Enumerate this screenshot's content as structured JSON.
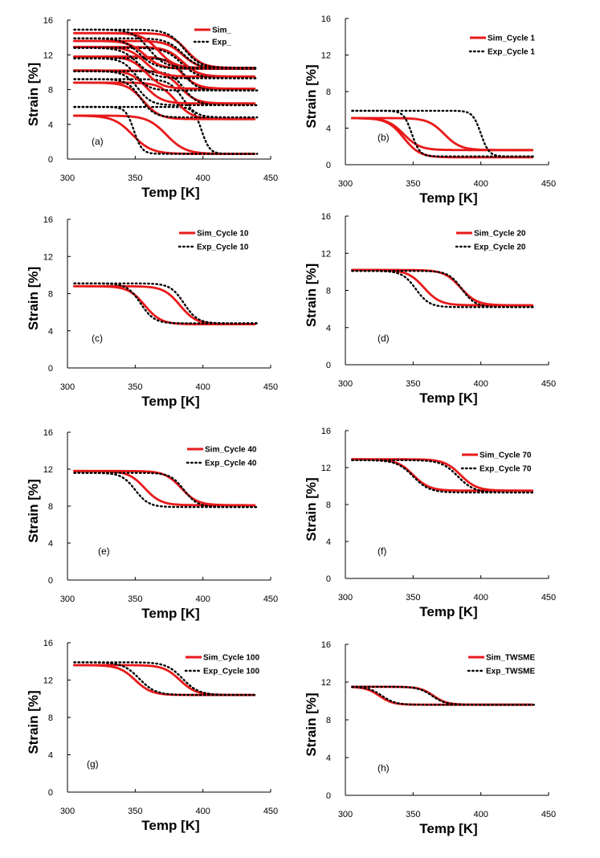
{
  "colors": {
    "sim": "#e8191a",
    "exp": "#000000",
    "axis": "#000000"
  },
  "chart_data": [
    {
      "type": "line",
      "panel_label": "(a)",
      "xlabel": "Temp [K]",
      "ylabel": "Strain [%]",
      "xlim": [
        300,
        450
      ],
      "ylim": [
        0,
        16
      ],
      "xticks": [
        "300",
        "350",
        "400",
        "450"
      ],
      "yticks": [
        "0",
        "4",
        "8",
        "12",
        "16"
      ],
      "legend": [
        "Sim_",
        "Exp_"
      ],
      "series": [
        {
          "name": "Sim",
          "kind": "sim",
          "x0": 305,
          "x1": 438,
          "lo": 0.6,
          "hi": 5.0,
          "heat": 373,
          "cool": 348,
          "w": 7
        },
        {
          "name": "Exp",
          "kind": "exp",
          "x0": 305,
          "x1": 440,
          "lo": 0.6,
          "hi": 6.0,
          "heat": 399,
          "cool": 349,
          "w": 3
        },
        {
          "name": "Sim",
          "kind": "sim",
          "x0": 305,
          "x1": 438,
          "lo": 4.6,
          "hi": 8.8,
          "heat": 380,
          "cool": 356,
          "w": 6
        },
        {
          "name": "Exp",
          "kind": "exp",
          "x0": 305,
          "x1": 440,
          "lo": 4.8,
          "hi": 9.2,
          "heat": 385,
          "cool": 354,
          "w": 5
        },
        {
          "name": "Sim",
          "kind": "sim",
          "x0": 305,
          "x1": 438,
          "lo": 6.4,
          "hi": 10.2,
          "heat": 383,
          "cool": 358,
          "w": 6
        },
        {
          "name": "Exp",
          "kind": "exp",
          "x0": 305,
          "x1": 440,
          "lo": 6.2,
          "hi": 10.1,
          "heat": 386,
          "cool": 352,
          "w": 5
        },
        {
          "name": "Sim",
          "kind": "sim",
          "x0": 305,
          "x1": 438,
          "lo": 8.1,
          "hi": 11.8,
          "heat": 384,
          "cool": 358,
          "w": 6
        },
        {
          "name": "Exp",
          "kind": "exp",
          "x0": 305,
          "x1": 440,
          "lo": 7.9,
          "hi": 11.6,
          "heat": 386,
          "cool": 350,
          "w": 5
        },
        {
          "name": "Sim",
          "kind": "sim",
          "x0": 305,
          "x1": 438,
          "lo": 9.5,
          "hi": 12.9,
          "heat": 385,
          "cool": 357,
          "w": 6
        },
        {
          "name": "Exp",
          "kind": "exp",
          "x0": 305,
          "x1": 440,
          "lo": 9.3,
          "hi": 12.8,
          "heat": 384,
          "cool": 352,
          "w": 6
        },
        {
          "name": "Sim",
          "kind": "sim",
          "x0": 305,
          "x1": 438,
          "lo": 10.4,
          "hi": 13.6,
          "heat": 385,
          "cool": 357,
          "w": 6
        },
        {
          "name": "Exp",
          "kind": "exp",
          "x0": 305,
          "x1": 440,
          "lo": 10.4,
          "hi": 13.9,
          "heat": 385,
          "cool": 353,
          "w": 6
        },
        {
          "name": "Sim",
          "kind": "sim",
          "x0": 305,
          "x1": 438,
          "lo": 10.5,
          "hi": 14.5,
          "heat": 388,
          "cool": 367,
          "w": 6
        },
        {
          "name": "Exp",
          "kind": "exp",
          "x0": 305,
          "x1": 440,
          "lo": 10.5,
          "hi": 14.9,
          "heat": 386,
          "cool": 360,
          "w": 6
        }
      ]
    },
    {
      "type": "line",
      "panel_label": "(b)",
      "xlabel": "Temp [K]",
      "ylabel": "Strain [%]",
      "xlim": [
        300,
        450
      ],
      "ylim": [
        0,
        16
      ],
      "xticks": [
        "300",
        "350",
        "400",
        "450"
      ],
      "yticks": [
        "0",
        "4",
        "8",
        "12",
        "16"
      ],
      "legend": [
        "Sim_Cycle 1",
        "Exp_Cycle 1"
      ],
      "series": [
        {
          "name": "Sim_Cycle 1",
          "kind": "sim",
          "x0": 305,
          "x1": 438,
          "lo": 1.6,
          "hi": 5.1,
          "heat": 373,
          "cool": 343,
          "w": 6
        },
        {
          "name": "Sim_Cycle 1",
          "kind": "sim",
          "x0": 305,
          "x1": 438,
          "lo": 0.8,
          "hi": 5.1,
          "heat": 370,
          "cool": 343,
          "w": 6,
          "only": "cool"
        },
        {
          "name": "Exp_Cycle 1",
          "kind": "exp",
          "x0": 305,
          "x1": 440,
          "lo": 0.9,
          "hi": 5.9,
          "heat": 400,
          "cool": 349,
          "w": 3
        }
      ]
    },
    {
      "type": "line",
      "panel_label": "(c)",
      "xlabel": "Temp [K]",
      "ylabel": "Strain [%]",
      "xlim": [
        300,
        450
      ],
      "ylim": [
        0,
        16
      ],
      "xticks": [
        "300",
        "350",
        "400",
        "450"
      ],
      "yticks": [
        "0",
        "4",
        "8",
        "12",
        "16"
      ],
      "legend": [
        "Sim_Cycle 10",
        "Exp_Cycle 10"
      ],
      "series": [
        {
          "name": "Sim_Cycle 10",
          "kind": "sim",
          "x0": 305,
          "x1": 438,
          "lo": 4.7,
          "hi": 8.8,
          "heat": 383,
          "cool": 357,
          "w": 6
        },
        {
          "name": "Exp_Cycle 10",
          "kind": "exp",
          "x0": 305,
          "x1": 440,
          "lo": 4.8,
          "hi": 9.1,
          "heat": 386,
          "cool": 354,
          "w": 5
        }
      ]
    },
    {
      "type": "line",
      "panel_label": "(d)",
      "xlabel": "Temp [K]",
      "ylabel": "Strain [%]",
      "xlim": [
        300,
        450
      ],
      "ylim": [
        0,
        16
      ],
      "xticks": [
        "300",
        "350",
        "400",
        "450"
      ],
      "yticks": [
        "0",
        "4",
        "8",
        "12",
        "16"
      ],
      "legend": [
        "Sim_Cycle 20",
        "Exp_Cycle 20"
      ],
      "series": [
        {
          "name": "Sim_Cycle 20",
          "kind": "sim",
          "x0": 305,
          "x1": 438,
          "lo": 6.4,
          "hi": 10.2,
          "heat": 385,
          "cool": 358,
          "w": 6
        },
        {
          "name": "Exp_Cycle 20",
          "kind": "exp",
          "x0": 305,
          "x1": 440,
          "lo": 6.2,
          "hi": 10.1,
          "heat": 386,
          "cool": 352,
          "w": 5
        }
      ]
    },
    {
      "type": "line",
      "panel_label": "(e)",
      "xlabel": "Temp [K]",
      "ylabel": "Strain [%]",
      "xlim": [
        300,
        450
      ],
      "ylim": [
        0,
        16
      ],
      "xticks": [
        "300",
        "350",
        "400",
        "450"
      ],
      "yticks": [
        "0",
        "4",
        "8",
        "12",
        "16"
      ],
      "legend": [
        "Sim_Cycle 40",
        "Exp_Cycle 40"
      ],
      "series": [
        {
          "name": "Sim_Cycle 40",
          "kind": "sim",
          "x0": 305,
          "x1": 438,
          "lo": 8.1,
          "hi": 11.8,
          "heat": 384,
          "cool": 357,
          "w": 6
        },
        {
          "name": "Exp_Cycle 40",
          "kind": "exp",
          "x0": 305,
          "x1": 440,
          "lo": 7.9,
          "hi": 11.6,
          "heat": 386,
          "cool": 350,
          "w": 5
        }
      ]
    },
    {
      "type": "line",
      "panel_label": "(f)",
      "xlabel": "Temp [K]",
      "ylabel": "Strain [%]",
      "xlim": [
        300,
        450
      ],
      "ylim": [
        0,
        16
      ],
      "xticks": [
        "300",
        "350",
        "400",
        "450"
      ],
      "yticks": [
        "0",
        "4",
        "8",
        "12",
        "16"
      ],
      "legend": [
        "Sim_Cycle 70",
        "Exp_Cycle 70"
      ],
      "series": [
        {
          "name": "Sim_Cycle 70",
          "kind": "sim",
          "x0": 305,
          "x1": 438,
          "lo": 9.5,
          "hi": 12.9,
          "heat": 385,
          "cool": 350,
          "w": 6
        },
        {
          "name": "Exp_Cycle 70",
          "kind": "exp",
          "x0": 305,
          "x1": 440,
          "lo": 9.3,
          "hi": 12.8,
          "heat": 383,
          "cool": 350,
          "w": 6
        }
      ]
    },
    {
      "type": "line",
      "panel_label": "(g)",
      "xlabel": "Temp [K]",
      "ylabel": "Strain [%]",
      "xlim": [
        300,
        450
      ],
      "ylim": [
        0,
        16
      ],
      "xticks": [
        "300",
        "350",
        "400",
        "450"
      ],
      "yticks": [
        "0",
        "4",
        "8",
        "12",
        "16"
      ],
      "legend": [
        "Sim_Cycle 100",
        "Exp_Cycle 100"
      ],
      "series": [
        {
          "name": "Sim_Cycle 100",
          "kind": "sim",
          "x0": 305,
          "x1": 438,
          "lo": 10.4,
          "hi": 13.6,
          "heat": 383,
          "cool": 350,
          "w": 6
        },
        {
          "name": "Exp_Cycle 100",
          "kind": "exp",
          "x0": 305,
          "x1": 440,
          "lo": 10.4,
          "hi": 13.9,
          "heat": 385,
          "cool": 353,
          "w": 6
        }
      ]
    },
    {
      "type": "line",
      "panel_label": "(h)",
      "xlabel": "Temp [K]",
      "ylabel": "Strain [%]",
      "xlim": [
        300,
        450
      ],
      "ylim": [
        0,
        16
      ],
      "xticks": [
        "300",
        "350",
        "400",
        "450"
      ],
      "yticks": [
        "0",
        "4",
        "8",
        "12",
        "16"
      ],
      "legend": [
        "Sim_TWSME",
        "Exp_TWSME"
      ],
      "series": [
        {
          "name": "Sim_TWSME",
          "kind": "sim",
          "x0": 305,
          "x1": 438,
          "lo": 9.6,
          "hi": 11.5,
          "heat": 365,
          "cool": 325,
          "w": 5
        },
        {
          "name": "Exp_TWSME",
          "kind": "exp",
          "x0": 305,
          "x1": 440,
          "lo": 9.6,
          "hi": 11.5,
          "heat": 364,
          "cool": 327,
          "w": 5
        }
      ]
    }
  ]
}
